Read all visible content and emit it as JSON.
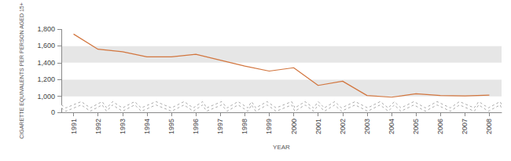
{
  "chart_data": {
    "type": "line",
    "y_label": "CIGARETTE EQUIVALENTS PER PERSON AGED 15+",
    "x_label": "YEAR",
    "categories": [
      "1991",
      "1992",
      "1993",
      "1994",
      "1995",
      "1996",
      "1997",
      "1998",
      "1999",
      "2000",
      "2001",
      "2002",
      "2003",
      "2004",
      "2005",
      "2006",
      "2007",
      "2008"
    ],
    "values": [
      1740,
      1560,
      1530,
      1470,
      1470,
      1500,
      1430,
      1360,
      1300,
      1340,
      1130,
      1180,
      1010,
      990,
      1030,
      1010,
      1005,
      1015
    ],
    "color": "#d2763f",
    "ylim": [
      0,
      1800
    ],
    "yticks": [
      0,
      {
        "value": 1000,
        "label": "1,000"
      },
      {
        "value": 1200,
        "label": "1,200"
      },
      {
        "value": 1400,
        "label": "1,400"
      },
      {
        "value": 1600,
        "label": "1,600"
      },
      {
        "value": 1800,
        "label": "1,800"
      }
    ],
    "grid": true
  }
}
